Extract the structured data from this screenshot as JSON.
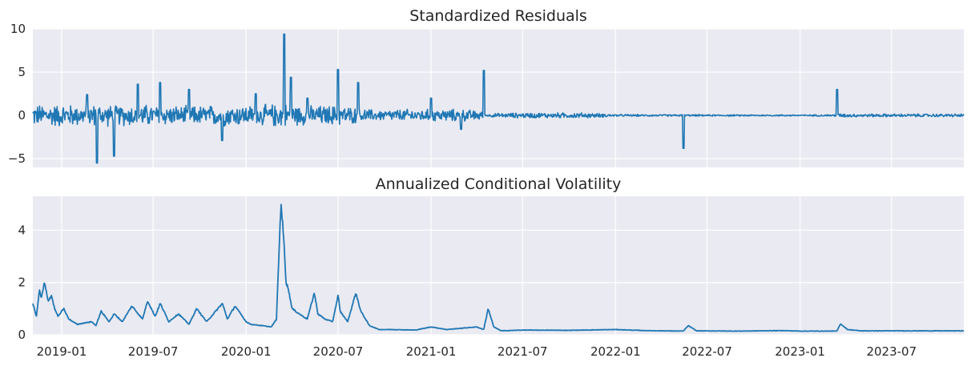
{
  "chart_data": [
    {
      "type": "line",
      "title": "Standardized Residuals",
      "xlabel": "",
      "ylabel": "",
      "xlim": [
        "2018-11-05",
        "2023-11-21"
      ],
      "ylim": [
        -6,
        10
      ],
      "yticks": [
        -5,
        0,
        5,
        10
      ],
      "ytick_labels": [
        "−5",
        "0",
        "5",
        "10"
      ],
      "grid": true,
      "color": "#1f77b4",
      "x": [
        "2018-11-10",
        "2019-01-01",
        "2019-02-20",
        "2019-03-12",
        "2019-04-15",
        "2019-06-01",
        "2019-07-15",
        "2019-09-10",
        "2019-11-15",
        "2020-01-20",
        "2020-03-16",
        "2020-03-30",
        "2020-05-01",
        "2020-06-01",
        "2020-07-01",
        "2020-08-10",
        "2020-09-15",
        "2020-11-01",
        "2021-01-01",
        "2021-03-01",
        "2021-04-15",
        "2021-04-23",
        "2021-05-01",
        "2021-07-01",
        "2021-09-01",
        "2021-11-01",
        "2022-01-01",
        "2022-03-01",
        "2022-05-15",
        "2022-05-25",
        "2022-08-01",
        "2022-10-01",
        "2022-11-28",
        "2023-01-01",
        "2023-02-15",
        "2023-03-15",
        "2023-03-22",
        "2023-05-01",
        "2023-07-01",
        "2023-09-01",
        "2023-11-20"
      ],
      "values": [
        0.8,
        -1.0,
        2.4,
        -5.5,
        -4.7,
        3.6,
        3.8,
        3.0,
        -2.9,
        2.5,
        9.4,
        4.4,
        2.0,
        -1.5,
        5.3,
        3.8,
        1.2,
        -1.3,
        2.0,
        -1.6,
        5.2,
        0.5,
        0.1,
        1.0,
        -1.0,
        0.8,
        0.3,
        -0.3,
        -3.8,
        0.6,
        0.2,
        -0.2,
        -1.3,
        0.2,
        0.5,
        3.0,
        -1.0,
        0.5,
        1.4,
        -0.4,
        0.3
      ],
      "amplitude": [
        1.4,
        1.5,
        1.3,
        1.5,
        1.3,
        1.5,
        1.3,
        1.2,
        1.4,
        1.3,
        1.6,
        1.4,
        1.2,
        1.3,
        1.3,
        1.0,
        0.7,
        0.8,
        0.8,
        0.8,
        0.6,
        0.15,
        0.25,
        0.35,
        0.35,
        0.35,
        0.15,
        0.12,
        0.12,
        0.12,
        0.1,
        0.1,
        0.1,
        0.1,
        0.1,
        0.15,
        0.25,
        0.2,
        0.2,
        0.2,
        0.2
      ]
    },
    {
      "type": "line",
      "title": "Annualized Conditional Volatility",
      "xlabel": "",
      "ylabel": "",
      "xlim": [
        "2018-11-05",
        "2023-11-21"
      ],
      "ylim": [
        0,
        5.3
      ],
      "yticks": [
        0,
        2,
        4
      ],
      "ytick_labels": [
        "0",
        "2",
        "4"
      ],
      "xtick_labels": [
        "2019-01",
        "2019-07",
        "2020-01",
        "2020-07",
        "2021-01",
        "2021-07",
        "2022-01",
        "2022-07",
        "2023-01",
        "2023-07"
      ],
      "grid": true,
      "color": "#1f77b4",
      "x": [
        "2018-11-05",
        "2018-11-12",
        "2018-11-18",
        "2018-11-22",
        "2018-11-28",
        "2018-12-05",
        "2018-12-12",
        "2018-12-18",
        "2018-12-25",
        "2019-01-05",
        "2019-01-15",
        "2019-02-01",
        "2019-03-01",
        "2019-03-10",
        "2019-03-20",
        "2019-04-05",
        "2019-04-15",
        "2019-05-01",
        "2019-05-20",
        "2019-06-10",
        "2019-06-20",
        "2019-07-05",
        "2019-07-15",
        "2019-08-01",
        "2019-08-20",
        "2019-09-10",
        "2019-09-25",
        "2019-10-15",
        "2019-11-15",
        "2019-11-25",
        "2019-12-10",
        "2020-01-01",
        "2020-01-10",
        "2020-02-01",
        "2020-02-20",
        "2020-03-01",
        "2020-03-10",
        "2020-03-16",
        "2020-03-20",
        "2020-03-24",
        "2020-04-01",
        "2020-04-15",
        "2020-05-01",
        "2020-05-15",
        "2020-05-22",
        "2020-06-05",
        "2020-06-20",
        "2020-07-01",
        "2020-07-05",
        "2020-07-20",
        "2020-08-05",
        "2020-08-15",
        "2020-09-01",
        "2020-09-20",
        "2020-10-15",
        "2020-12-01",
        "2021-01-01",
        "2021-02-01",
        "2021-04-01",
        "2021-04-15",
        "2021-04-24",
        "2021-05-05",
        "2021-05-20",
        "2021-07-01",
        "2021-10-01",
        "2022-01-01",
        "2022-03-01",
        "2022-05-15",
        "2022-05-25",
        "2022-06-10",
        "2022-09-01",
        "2022-11-28",
        "2023-01-01",
        "2023-02-15",
        "2023-03-15",
        "2023-03-22",
        "2023-04-05",
        "2023-05-01",
        "2023-07-15",
        "2023-09-01",
        "2023-11-20"
      ],
      "values": [
        1.2,
        0.7,
        1.7,
        1.4,
        2.0,
        1.3,
        1.5,
        1.0,
        0.7,
        1.0,
        0.6,
        0.4,
        0.5,
        0.35,
        0.9,
        0.5,
        0.8,
        0.5,
        1.1,
        0.6,
        1.3,
        0.7,
        1.2,
        0.5,
        0.8,
        0.4,
        1.0,
        0.5,
        1.2,
        0.6,
        1.1,
        0.5,
        0.4,
        0.35,
        0.3,
        0.6,
        5.1,
        3.5,
        2.0,
        1.8,
        1.0,
        0.8,
        0.6,
        1.6,
        0.8,
        0.6,
        0.5,
        1.5,
        0.9,
        0.5,
        1.6,
        0.9,
        0.35,
        0.2,
        0.2,
        0.18,
        0.3,
        0.2,
        0.3,
        0.2,
        1.0,
        0.3,
        0.15,
        0.18,
        0.17,
        0.2,
        0.16,
        0.14,
        0.35,
        0.15,
        0.14,
        0.16,
        0.14,
        0.14,
        0.14,
        0.42,
        0.2,
        0.15,
        0.15,
        0.15,
        0.15
      ],
      "noise": 0.06
    }
  ]
}
